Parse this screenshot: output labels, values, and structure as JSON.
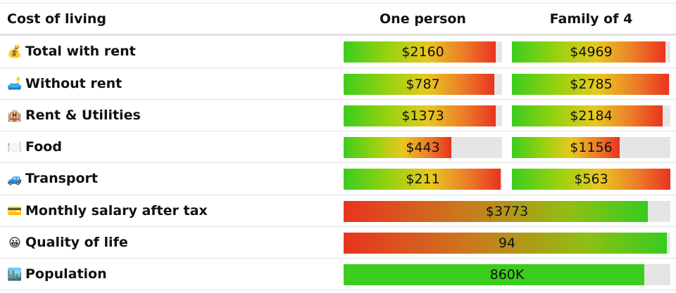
{
  "header": {
    "title": "Cost of living",
    "col1": "One person",
    "col2": "Family of 4"
  },
  "rows": [
    {
      "icon": "💰",
      "icon_name": "money-bag-icon",
      "label": "Total with rent",
      "one": "$2160",
      "one_fill": 0.96,
      "family": "$4969",
      "family_fill": 0.97,
      "gradient": "g-up"
    },
    {
      "icon": "🛋️",
      "icon_name": "couch-icon",
      "label": "Without rent",
      "one": "$787",
      "one_fill": 0.95,
      "family": "$2785",
      "family_fill": 0.99,
      "gradient": "g-up"
    },
    {
      "icon": "🏨",
      "icon_name": "hotel-icon",
      "label": "Rent & Utilities",
      "one": "$1373",
      "one_fill": 0.96,
      "family": "$2184",
      "family_fill": 0.95,
      "gradient": "g-up"
    },
    {
      "icon": "🍽️",
      "icon_name": "plate-icon",
      "label": "Food",
      "one": "$443",
      "one_fill": 0.68,
      "family": "$1156",
      "family_fill": 0.68,
      "gradient": "g-up"
    },
    {
      "icon": "🚙",
      "icon_name": "car-icon",
      "label": "Transport",
      "one": "$211",
      "one_fill": 0.99,
      "family": "$563",
      "family_fill": 1.0,
      "gradient": "g-up"
    }
  ],
  "wide_rows": [
    {
      "icon": "💳",
      "icon_name": "credit-card-icon",
      "label": "Monthly salary after tax",
      "value": "$3773",
      "fill": 0.93,
      "gradient": "g-down"
    },
    {
      "icon": "😀",
      "icon_name": "smile-icon",
      "label": "Quality of life",
      "value": "94",
      "fill": 0.99,
      "gradient": "g-down"
    },
    {
      "icon": "🏙️",
      "icon_name": "city-icon",
      "label": "Population",
      "value": "860K",
      "fill": 0.92,
      "gradient": "g-solid"
    }
  ],
  "colors": {
    "green": "#3ccc1e",
    "yellow": "#e8c820",
    "red": "#e8341f",
    "track": "#e5e5e5"
  }
}
